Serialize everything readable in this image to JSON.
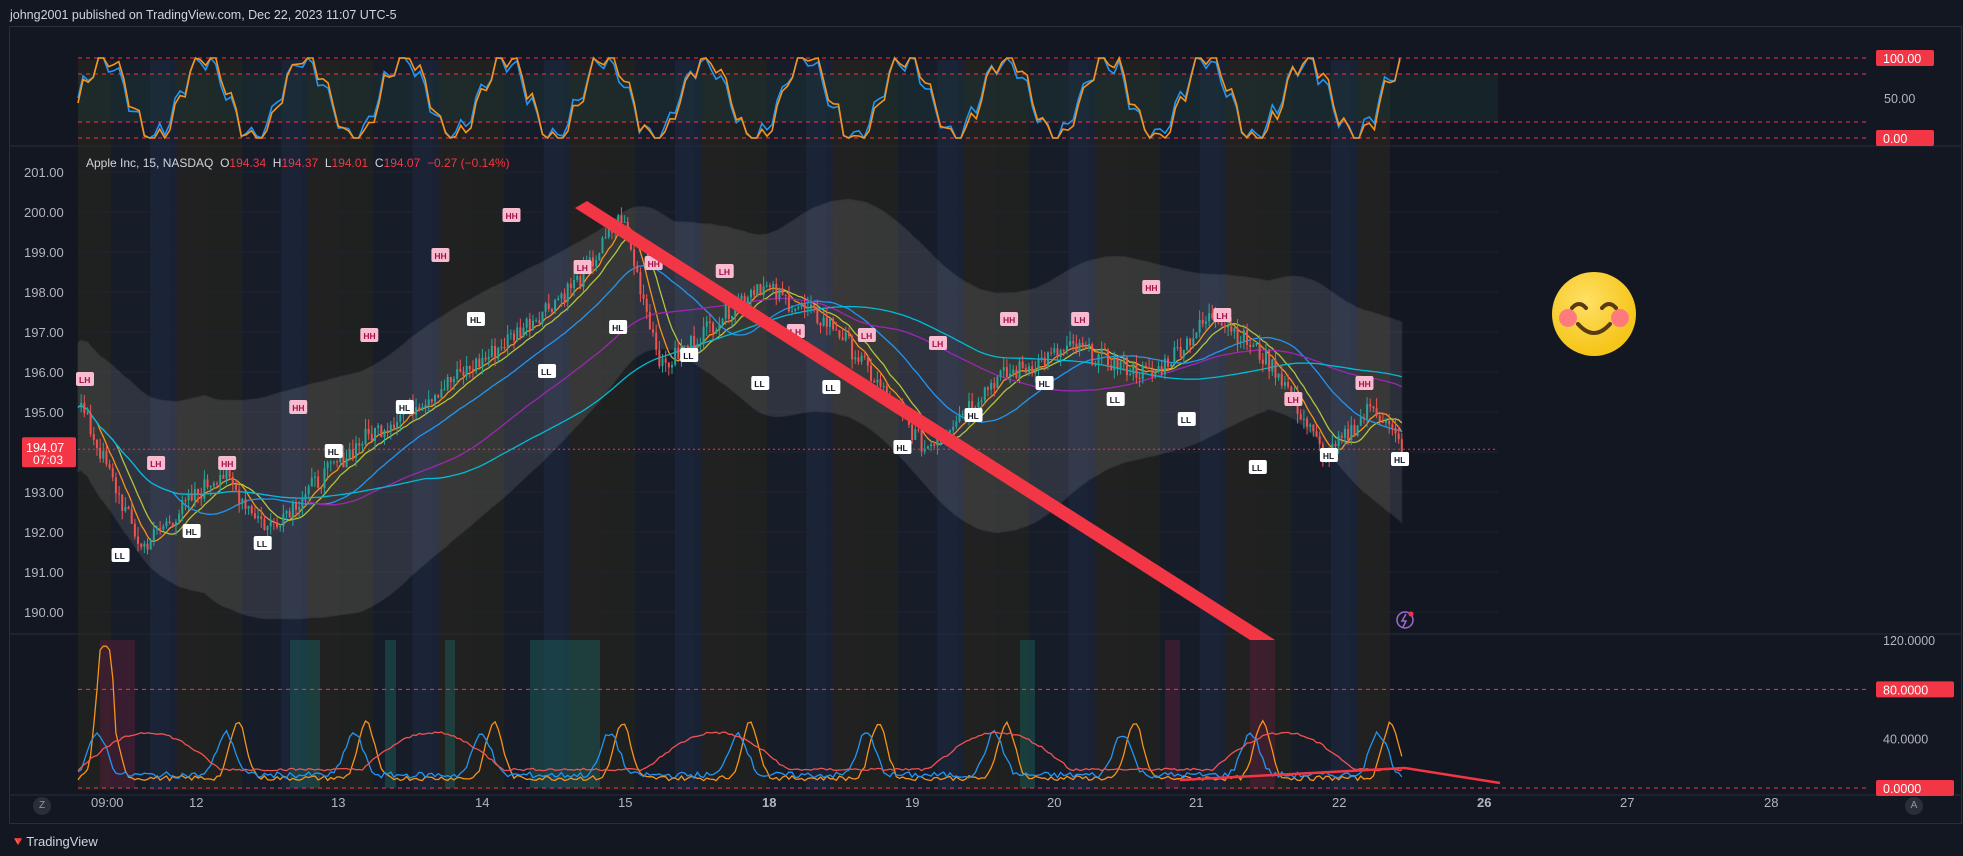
{
  "header": {
    "publish_text": "johng2001 published on TradingView.com, Dec 22, 2023 11:07 UTC-5"
  },
  "legend": {
    "symbol": "Apple Inc, 15, NASDAQ",
    "o_label": "O",
    "o_value": "194.34",
    "h_label": "H",
    "h_value": "194.37",
    "l_label": "L",
    "l_value": "194.01",
    "c_label": "C",
    "c_value": "194.07",
    "change": "−0.27 (−0.14%)"
  },
  "footer": {
    "brand": "TradingView",
    "z_button": "Z",
    "a_button": "A"
  },
  "colors": {
    "background": "#131722",
    "grid": "#1f2330",
    "up": "#26a69a",
    "down": "#ef5350",
    "accent_red": "#f23645",
    "orange": "#f7931a",
    "blue": "#2196f3",
    "cyan": "#00bcd4",
    "purple": "#9c27b0",
    "yellow_green": "#b5c33a",
    "band": "#d1d4dc"
  },
  "icons": [
    "smiley-emoji-icon",
    "lightning-alert-icon",
    "tradingview-logo-icon"
  ],
  "chart_data": [
    {
      "type": "line",
      "pane": "oscillator-top",
      "yticks": [
        "100.00",
        "50.00",
        "0.00"
      ],
      "ylim": [
        0,
        100
      ],
      "levels": [
        100,
        80,
        20,
        0
      ]
    },
    {
      "type": "candlestick",
      "pane": "price",
      "title": "Apple Inc, 15, NASDAQ",
      "yticks": [
        "201.00",
        "200.00",
        "199.00",
        "198.00",
        "197.00",
        "196.00",
        "195.00",
        "194.00",
        "193.00",
        "192.00",
        "191.00",
        "190.00"
      ],
      "ylim": [
        189.5,
        201.5
      ],
      "current_price": "194.07",
      "countdown": "07:03",
      "xticks": [
        "09:00",
        "12",
        "13",
        "14",
        "15",
        "18",
        "19",
        "20",
        "21",
        "22",
        "26",
        "27",
        "28"
      ],
      "swing_labels": [
        {
          "t": "LH",
          "p": 195.8
        },
        {
          "t": "LL",
          "p": 191.4
        },
        {
          "t": "LH",
          "p": 193.7
        },
        {
          "t": "HL",
          "p": 192.0
        },
        {
          "t": "HH",
          "p": 193.7
        },
        {
          "t": "LL",
          "p": 191.7
        },
        {
          "t": "HH",
          "p": 195.1
        },
        {
          "t": "HL",
          "p": 194.0
        },
        {
          "t": "HH",
          "p": 196.9
        },
        {
          "t": "HL",
          "p": 195.1
        },
        {
          "t": "HH",
          "p": 198.9
        },
        {
          "t": "HL",
          "p": 197.3
        },
        {
          "t": "HH",
          "p": 199.9
        },
        {
          "t": "LL",
          "p": 196.0
        },
        {
          "t": "LH",
          "p": 198.6
        },
        {
          "t": "HL",
          "p": 197.1
        },
        {
          "t": "HH",
          "p": 198.7
        },
        {
          "t": "LL",
          "p": 196.4
        },
        {
          "t": "LH",
          "p": 198.5
        },
        {
          "t": "LL",
          "p": 195.7
        },
        {
          "t": "LH",
          "p": 197.0
        },
        {
          "t": "LL",
          "p": 195.6
        },
        {
          "t": "LH",
          "p": 196.9
        },
        {
          "t": "HL",
          "p": 194.1
        },
        {
          "t": "LH",
          "p": 196.7
        },
        {
          "t": "HL",
          "p": 194.9
        },
        {
          "t": "HH",
          "p": 197.3
        },
        {
          "t": "HL",
          "p": 195.7
        },
        {
          "t": "LH",
          "p": 197.3
        },
        {
          "t": "LL",
          "p": 195.3
        },
        {
          "t": "HH",
          "p": 198.1
        },
        {
          "t": "LL",
          "p": 194.8
        },
        {
          "t": "LH",
          "p": 197.4
        },
        {
          "t": "LL",
          "p": 193.6
        },
        {
          "t": "LH",
          "p": 195.3
        },
        {
          "t": "HL",
          "p": 193.9
        },
        {
          "t": "HH",
          "p": 195.7
        },
        {
          "t": "HL",
          "p": 193.8
        }
      ]
    },
    {
      "type": "line",
      "pane": "oscillator-bottom",
      "yticks": [
        "120.0000",
        "80.0000",
        "40.0000",
        "0.0000"
      ],
      "ylim": [
        0,
        120
      ],
      "levels": [
        80,
        0
      ]
    }
  ]
}
